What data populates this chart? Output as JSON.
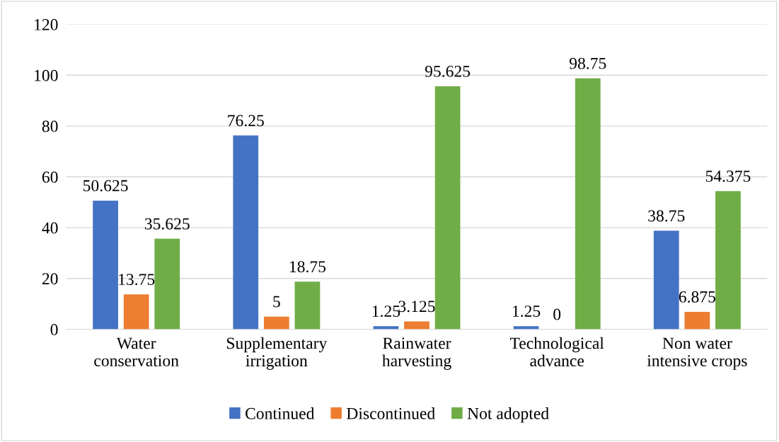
{
  "chart_data": {
    "type": "bar",
    "categories": [
      "Water\nconservation",
      "Supplementary\nirrigation",
      "Rainwater\nharvesting",
      "Technological\nadvance",
      "Non water\nintensive crops"
    ],
    "series": [
      {
        "name": "Continued",
        "color": "#4472c4",
        "values": [
          50.625,
          76.25,
          1.25,
          1.25,
          38.75
        ]
      },
      {
        "name": "Discontinued",
        "color": "#ed7d31",
        "values": [
          13.75,
          5,
          3.125,
          0,
          6.875
        ]
      },
      {
        "name": "Not adopted",
        "color": "#70ad47",
        "values": [
          35.625,
          18.75,
          95.625,
          98.75,
          54.375
        ]
      }
    ],
    "ylim": [
      0,
      120
    ],
    "yticks": [
      0,
      20,
      40,
      60,
      80,
      100,
      120
    ],
    "grid": "y",
    "legend": "bottom",
    "data_labels": true
  }
}
